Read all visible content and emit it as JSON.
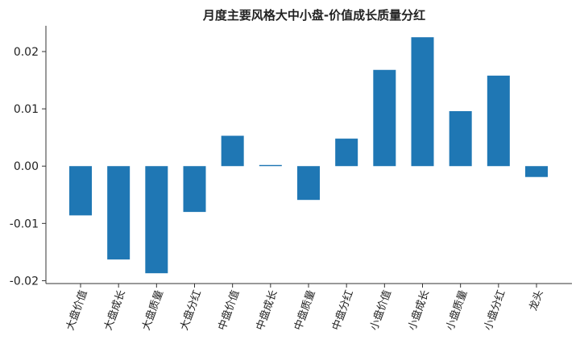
{
  "chart_data": {
    "type": "bar",
    "title": "月度主要风格大中小盘-价值成长质量分红",
    "xlabel": "",
    "ylabel": "",
    "categories": [
      "大盘价值",
      "大盘成长",
      "大盘质量",
      "大盘分红",
      "中盘价值",
      "中盘成长",
      "中盘质量",
      "中盘分红",
      "小盘价值",
      "小盘成长",
      "小盘质量",
      "小盘分红",
      "龙头"
    ],
    "values": [
      -0.0086,
      -0.0163,
      -0.0187,
      -0.008,
      0.0053,
      0.0002,
      -0.0059,
      0.0048,
      0.0168,
      0.0225,
      0.0096,
      0.0158,
      -0.0019
    ],
    "yticks": [
      -0.02,
      -0.01,
      0.0,
      0.01,
      0.02
    ],
    "ytick_labels": [
      "-0.02",
      "-0.01",
      "0.00",
      "0.01",
      "0.02"
    ],
    "ylim": [
      -0.0205,
      0.0245
    ],
    "bar_color": "#1f77b4",
    "grid": false,
    "legend": "none"
  }
}
